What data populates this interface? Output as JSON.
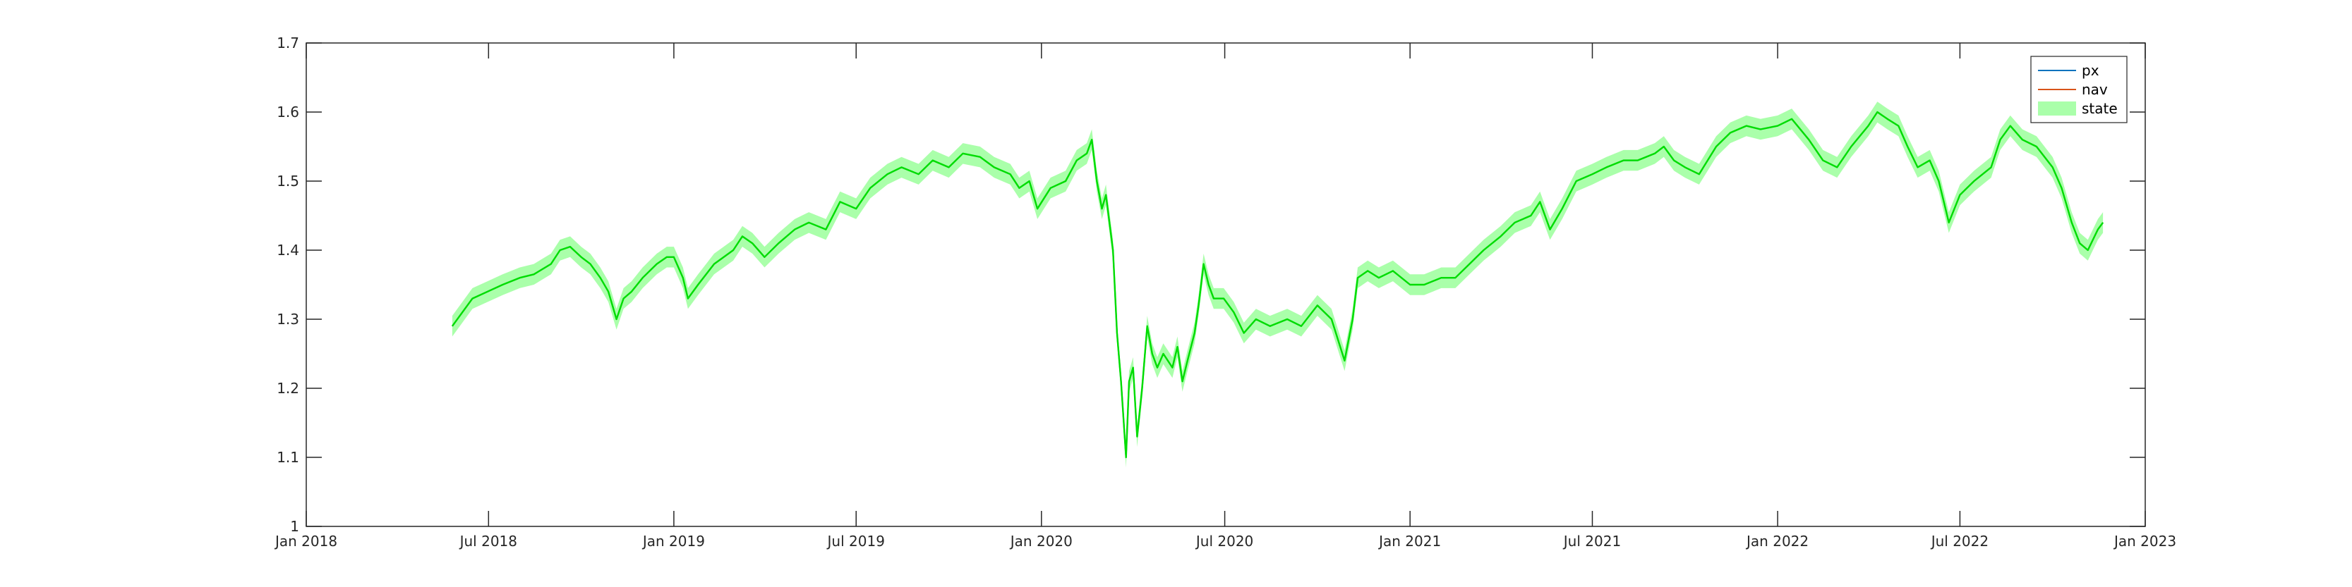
{
  "chart_data": {
    "type": "line",
    "title": "",
    "xlabel": "",
    "ylabel": "",
    "x_axis": {
      "type": "date",
      "range": [
        "2018-01-01",
        "2023-01-01"
      ],
      "ticks": [
        {
          "date": "2018-01-01",
          "label": "Jan 2018"
        },
        {
          "date": "2018-07-01",
          "label": "Jul 2018"
        },
        {
          "date": "2019-01-01",
          "label": "Jan 2019"
        },
        {
          "date": "2019-07-01",
          "label": "Jul 2019"
        },
        {
          "date": "2020-01-01",
          "label": "Jan 2020"
        },
        {
          "date": "2020-07-01",
          "label": "Jul 2020"
        },
        {
          "date": "2021-01-01",
          "label": "Jan 2021"
        },
        {
          "date": "2021-07-01",
          "label": "Jul 2021"
        },
        {
          "date": "2022-01-01",
          "label": "Jan 2022"
        },
        {
          "date": "2022-07-01",
          "label": "Jul 2022"
        },
        {
          "date": "2023-01-01",
          "label": "Jan 2023"
        }
      ]
    },
    "y_axis": {
      "range": [
        1,
        1.7
      ],
      "ticks": [
        {
          "value": 1,
          "label": "1"
        },
        {
          "value": 1.1,
          "label": "1.1"
        },
        {
          "value": 1.2,
          "label": "1.2"
        },
        {
          "value": 1.3,
          "label": "1.3"
        },
        {
          "value": 1.4,
          "label": "1.4"
        },
        {
          "value": 1.5,
          "label": "1.5"
        },
        {
          "value": 1.6,
          "label": "1.6"
        },
        {
          "value": 1.7,
          "label": "1.7"
        }
      ]
    },
    "grid": false,
    "legend": {
      "placement": "top-right",
      "entries": [
        {
          "label": "px",
          "color": "#0072BD",
          "style": "line"
        },
        {
          "label": "nav",
          "color": "#D95319",
          "style": "line"
        },
        {
          "label": "state",
          "color": "#AAFFAA",
          "style": "patch"
        }
      ]
    },
    "state_band": {
      "name": "state",
      "color": "#AAFFAA",
      "half_width": 0.015
    },
    "series": [
      {
        "name": "px",
        "color": "#0072BD",
        "points": [
          [
            "2018-05-26",
            1.29
          ],
          [
            "2018-06-05",
            1.31
          ],
          [
            "2018-06-15",
            1.33
          ],
          [
            "2018-06-30",
            1.34
          ],
          [
            "2018-07-15",
            1.35
          ],
          [
            "2018-08-01",
            1.36
          ],
          [
            "2018-08-15",
            1.365
          ],
          [
            "2018-09-01",
            1.38
          ],
          [
            "2018-09-10",
            1.4
          ],
          [
            "2018-09-20",
            1.405
          ],
          [
            "2018-10-01",
            1.39
          ],
          [
            "2018-10-10",
            1.38
          ],
          [
            "2018-10-20",
            1.36
          ],
          [
            "2018-10-28",
            1.34
          ],
          [
            "2018-11-05",
            1.3
          ],
          [
            "2018-11-12",
            1.33
          ],
          [
            "2018-11-20",
            1.34
          ],
          [
            "2018-12-01",
            1.36
          ],
          [
            "2018-12-15",
            1.38
          ],
          [
            "2018-12-25",
            1.39
          ],
          [
            "2019-01-01",
            1.39
          ],
          [
            "2019-01-10",
            1.36
          ],
          [
            "2019-01-15",
            1.33
          ],
          [
            "2019-01-25",
            1.35
          ],
          [
            "2019-02-10",
            1.38
          ],
          [
            "2019-03-01",
            1.4
          ],
          [
            "2019-03-10",
            1.42
          ],
          [
            "2019-03-20",
            1.41
          ],
          [
            "2019-04-01",
            1.39
          ],
          [
            "2019-04-15",
            1.41
          ],
          [
            "2019-05-01",
            1.43
          ],
          [
            "2019-05-15",
            1.44
          ],
          [
            "2019-06-01",
            1.43
          ],
          [
            "2019-06-15",
            1.47
          ],
          [
            "2019-07-01",
            1.46
          ],
          [
            "2019-07-15",
            1.49
          ],
          [
            "2019-08-01",
            1.51
          ],
          [
            "2019-08-15",
            1.52
          ],
          [
            "2019-09-01",
            1.51
          ],
          [
            "2019-09-15",
            1.53
          ],
          [
            "2019-10-01",
            1.52
          ],
          [
            "2019-10-15",
            1.54
          ],
          [
            "2019-11-01",
            1.535
          ],
          [
            "2019-11-15",
            1.52
          ],
          [
            "2019-12-01",
            1.51
          ],
          [
            "2019-12-10",
            1.49
          ],
          [
            "2019-12-20",
            1.5
          ],
          [
            "2019-12-28",
            1.46
          ],
          [
            "2020-01-10",
            1.49
          ],
          [
            "2020-01-25",
            1.5
          ],
          [
            "2020-02-05",
            1.53
          ],
          [
            "2020-02-15",
            1.54
          ],
          [
            "2020-02-20",
            1.56
          ],
          [
            "2020-02-25",
            1.5
          ],
          [
            "2020-03-01",
            1.46
          ],
          [
            "2020-03-05",
            1.48
          ],
          [
            "2020-03-12",
            1.4
          ],
          [
            "2020-03-16",
            1.28
          ],
          [
            "2020-03-20",
            1.21
          ],
          [
            "2020-03-25",
            1.1
          ],
          [
            "2020-03-28",
            1.21
          ],
          [
            "2020-04-01",
            1.23
          ],
          [
            "2020-04-05",
            1.13
          ],
          [
            "2020-04-10",
            1.2
          ],
          [
            "2020-04-15",
            1.29
          ],
          [
            "2020-04-20",
            1.25
          ],
          [
            "2020-04-25",
            1.23
          ],
          [
            "2020-05-01",
            1.25
          ],
          [
            "2020-05-10",
            1.23
          ],
          [
            "2020-05-15",
            1.26
          ],
          [
            "2020-05-20",
            1.21
          ],
          [
            "2020-05-25",
            1.24
          ],
          [
            "2020-06-01",
            1.28
          ],
          [
            "2020-06-05",
            1.32
          ],
          [
            "2020-06-10",
            1.38
          ],
          [
            "2020-06-15",
            1.35
          ],
          [
            "2020-06-20",
            1.33
          ],
          [
            "2020-06-30",
            1.33
          ],
          [
            "2020-07-10",
            1.31
          ],
          [
            "2020-07-20",
            1.28
          ],
          [
            "2020-08-01",
            1.3
          ],
          [
            "2020-08-15",
            1.29
          ],
          [
            "2020-09-01",
            1.3
          ],
          [
            "2020-09-15",
            1.29
          ],
          [
            "2020-10-01",
            1.32
          ],
          [
            "2020-10-15",
            1.3
          ],
          [
            "2020-10-28",
            1.24
          ],
          [
            "2020-11-05",
            1.3
          ],
          [
            "2020-11-10",
            1.36
          ],
          [
            "2020-11-20",
            1.37
          ],
          [
            "2020-12-01",
            1.36
          ],
          [
            "2020-12-15",
            1.37
          ],
          [
            "2021-01-01",
            1.35
          ],
          [
            "2021-01-15",
            1.35
          ],
          [
            "2021-02-01",
            1.36
          ],
          [
            "2021-02-15",
            1.36
          ],
          [
            "2021-03-01",
            1.38
          ],
          [
            "2021-03-15",
            1.4
          ],
          [
            "2021-04-01",
            1.42
          ],
          [
            "2021-04-15",
            1.44
          ],
          [
            "2021-05-01",
            1.45
          ],
          [
            "2021-05-10",
            1.47
          ],
          [
            "2021-05-20",
            1.43
          ],
          [
            "2021-06-01",
            1.46
          ],
          [
            "2021-06-15",
            1.5
          ],
          [
            "2021-07-01",
            1.51
          ],
          [
            "2021-07-15",
            1.52
          ],
          [
            "2021-08-01",
            1.53
          ],
          [
            "2021-08-15",
            1.53
          ],
          [
            "2021-09-01",
            1.54
          ],
          [
            "2021-09-10",
            1.55
          ],
          [
            "2021-09-20",
            1.53
          ],
          [
            "2021-10-01",
            1.52
          ],
          [
            "2021-10-15",
            1.51
          ],
          [
            "2021-11-01",
            1.55
          ],
          [
            "2021-11-15",
            1.57
          ],
          [
            "2021-12-01",
            1.58
          ],
          [
            "2021-12-15",
            1.575
          ],
          [
            "2022-01-01",
            1.58
          ],
          [
            "2022-01-15",
            1.59
          ],
          [
            "2022-02-01",
            1.56
          ],
          [
            "2022-02-15",
            1.53
          ],
          [
            "2022-03-01",
            1.52
          ],
          [
            "2022-03-15",
            1.55
          ],
          [
            "2022-04-01",
            1.58
          ],
          [
            "2022-04-10",
            1.6
          ],
          [
            "2022-04-20",
            1.59
          ],
          [
            "2022-05-01",
            1.58
          ],
          [
            "2022-05-10",
            1.55
          ],
          [
            "2022-05-20",
            1.52
          ],
          [
            "2022-06-01",
            1.53
          ],
          [
            "2022-06-10",
            1.5
          ],
          [
            "2022-06-15",
            1.47
          ],
          [
            "2022-06-20",
            1.44
          ],
          [
            "2022-07-01",
            1.48
          ],
          [
            "2022-07-15",
            1.5
          ],
          [
            "2022-08-01",
            1.52
          ],
          [
            "2022-08-10",
            1.56
          ],
          [
            "2022-08-20",
            1.58
          ],
          [
            "2022-09-01",
            1.56
          ],
          [
            "2022-09-15",
            1.55
          ],
          [
            "2022-10-01",
            1.52
          ],
          [
            "2022-10-10",
            1.49
          ],
          [
            "2022-10-20",
            1.44
          ],
          [
            "2022-10-28",
            1.41
          ],
          [
            "2022-11-05",
            1.4
          ],
          [
            "2022-11-15",
            1.43
          ],
          [
            "2022-11-20",
            1.44
          ]
        ]
      },
      {
        "name": "nav",
        "color": "#D95319",
        "same_as": "px"
      }
    ]
  }
}
